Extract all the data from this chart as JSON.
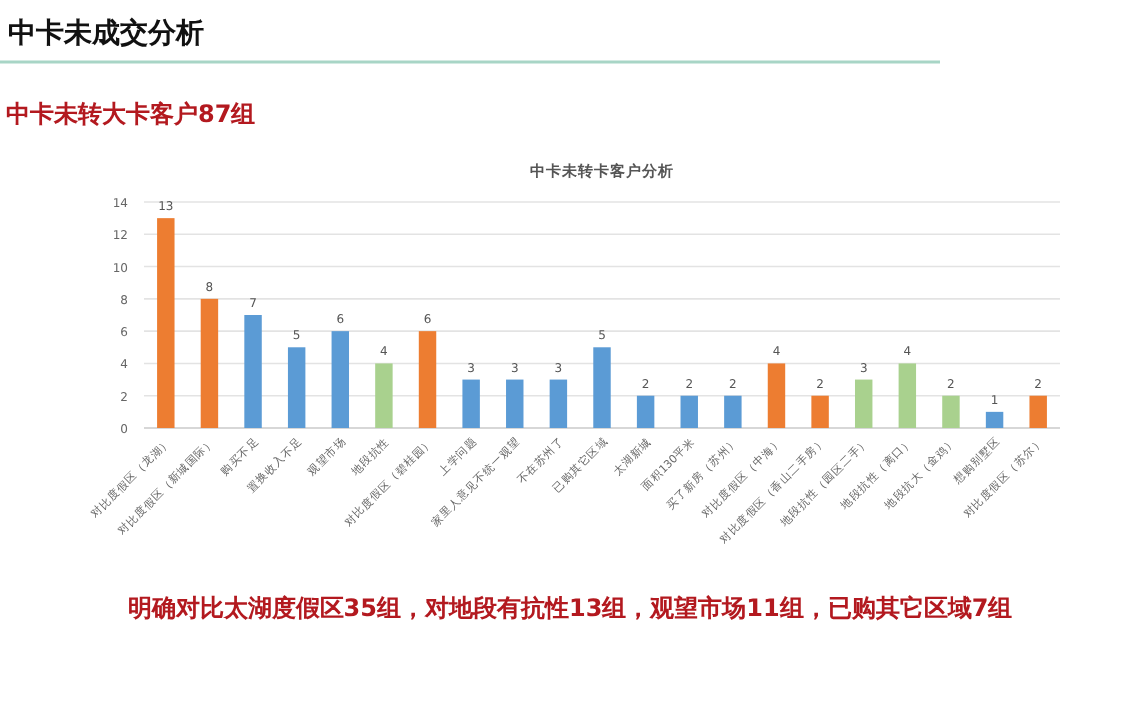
{
  "chart_data": {
    "type": "bar",
    "title": "中卡未转卡客户分析",
    "annotations": [
      "中卡未成交分析",
      "中卡未转大卡客户87组",
      "明确对比太湖度假区35组，对地段有抗性13组，观望市场11组，已购其它区域7组"
    ],
    "categories": [
      "对比度假区（龙湖）",
      "对比度假区（新城国际）",
      "购买不足",
      "置换收入不足",
      "观望市场",
      "地段抗性",
      "对比度假区（碧桂园）",
      "上学问题",
      "家里人意见不统一观望",
      "不在苏州了",
      "已购其它区域",
      "太湖新城",
      "面积130平米",
      "买了新房（苏州）",
      "对比度假区（中海）",
      "对比度假区（香山二手房）",
      "地段抗性（园区二手）",
      "地段抗性（离口）",
      "地段抗大（金鸡）",
      "想购别墅区",
      "对比度假区（苏尔）"
    ],
    "values": [
      13,
      8,
      7,
      5,
      6,
      4,
      6,
      3,
      3,
      3,
      5,
      2,
      2,
      2,
      4,
      2,
      3,
      4,
      2,
      1,
      2
    ],
    "colors": [
      "#ed7d31",
      "#ed7d31",
      "#5b9bd5",
      "#5b9bd5",
      "#5b9bd5",
      "#a9d18e",
      "#ed7d31",
      "#5b9bd5",
      "#5b9bd5",
      "#5b9bd5",
      "#5b9bd5",
      "#5b9bd5",
      "#5b9bd5",
      "#5b9bd5",
      "#ed7d31",
      "#ed7d31",
      "#a9d18e",
      "#a9d18e",
      "#a9d18e",
      "#5b9bd5",
      "#ed7d31"
    ],
    "ylim": [
      0,
      14
    ],
    "yticks": [
      0,
      2,
      4,
      6,
      8,
      10,
      12,
      14
    ],
    "grid": "y",
    "data_labels": true
  }
}
